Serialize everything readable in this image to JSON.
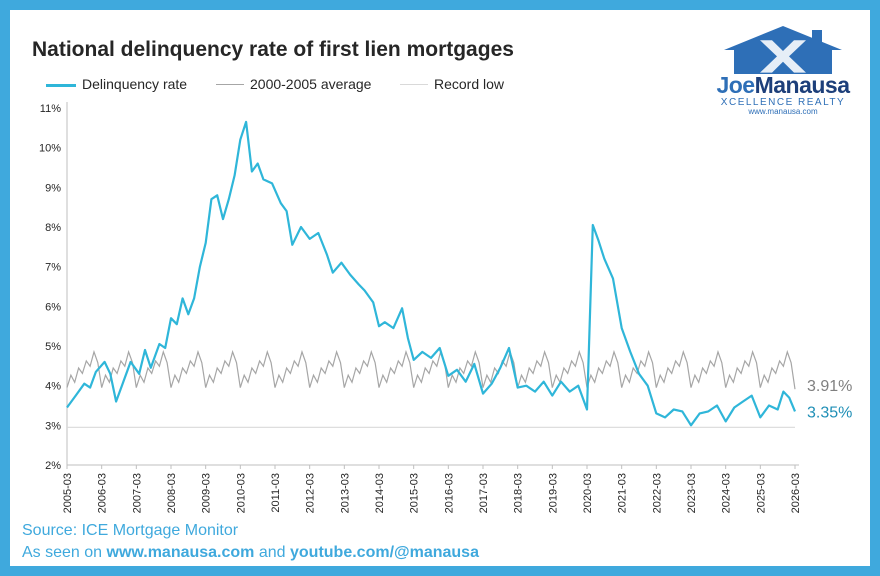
{
  "branding": {
    "name_part1": "Joe",
    "name_part2": "Manausa",
    "tagline": "XCELLENCE REALTY",
    "website": "www.manausa.com"
  },
  "source": {
    "line1": "Source: ICE Mortgage Monitor",
    "line2_prefix": "As seen on ",
    "line2_site": "www.manausa.com",
    "line2_mid": " and ",
    "line2_channel": "youtube.com/@manausa"
  },
  "chart_data": {
    "type": "line",
    "title": "National delinquency rate of first lien mortgages",
    "ylim": [
      2,
      11
    ],
    "y_ticks": [
      "2%",
      "3%",
      "4%",
      "5%",
      "6%",
      "7%",
      "8%",
      "9%",
      "10%",
      "11%"
    ],
    "x_ticks": [
      "2005-03",
      "2006-03",
      "2007-03",
      "2008-03",
      "2009-03",
      "2010-03",
      "2011-03",
      "2012-03",
      "2013-03",
      "2014-03",
      "2015-03",
      "2016-03",
      "2017-03",
      "2018-03",
      "2019-03",
      "2020-03",
      "2021-03",
      "2022-03",
      "2023-03",
      "2024-03",
      "2025-03",
      "2026-03"
    ],
    "x_range": [
      "2005-03",
      "2026-03"
    ],
    "legend_position": "top",
    "grid": false,
    "colors": {
      "delinquency": "#2fb6d9",
      "average": "#a6a6a6",
      "record_low": "#d9d9d9",
      "average_label": "#7f7f7f",
      "latest_label": "#1f8fb6"
    },
    "series": [
      {
        "name": "Delinquency rate",
        "points": [
          [
            "2005-03",
            3.45
          ],
          [
            "2005-06",
            3.75
          ],
          [
            "2005-09",
            4.05
          ],
          [
            "2005-11",
            3.95
          ],
          [
            "2006-01",
            4.35
          ],
          [
            "2006-04",
            4.6
          ],
          [
            "2006-06",
            4.3
          ],
          [
            "2006-08",
            3.6
          ],
          [
            "2006-10",
            4.0
          ],
          [
            "2007-01",
            4.6
          ],
          [
            "2007-04",
            4.3
          ],
          [
            "2007-06",
            4.9
          ],
          [
            "2007-08",
            4.45
          ],
          [
            "2007-11",
            5.05
          ],
          [
            "2008-01",
            4.95
          ],
          [
            "2008-03",
            5.7
          ],
          [
            "2008-05",
            5.55
          ],
          [
            "2008-07",
            6.2
          ],
          [
            "2008-09",
            5.8
          ],
          [
            "2008-11",
            6.2
          ],
          [
            "2009-01",
            7.0
          ],
          [
            "2009-03",
            7.6
          ],
          [
            "2009-05",
            8.7
          ],
          [
            "2009-07",
            8.8
          ],
          [
            "2009-09",
            8.2
          ],
          [
            "2009-11",
            8.7
          ],
          [
            "2010-01",
            9.3
          ],
          [
            "2010-03",
            10.2
          ],
          [
            "2010-05",
            10.65
          ],
          [
            "2010-07",
            9.4
          ],
          [
            "2010-09",
            9.6
          ],
          [
            "2010-11",
            9.2
          ],
          [
            "2011-02",
            9.1
          ],
          [
            "2011-05",
            8.6
          ],
          [
            "2011-07",
            8.4
          ],
          [
            "2011-09",
            7.55
          ],
          [
            "2011-12",
            8.0
          ],
          [
            "2012-03",
            7.7
          ],
          [
            "2012-06",
            7.85
          ],
          [
            "2012-09",
            7.3
          ],
          [
            "2012-11",
            6.85
          ],
          [
            "2013-02",
            7.1
          ],
          [
            "2013-05",
            6.8
          ],
          [
            "2013-08",
            6.55
          ],
          [
            "2013-10",
            6.4
          ],
          [
            "2014-01",
            6.1
          ],
          [
            "2014-03",
            5.5
          ],
          [
            "2014-05",
            5.6
          ],
          [
            "2014-08",
            5.45
          ],
          [
            "2014-11",
            5.95
          ],
          [
            "2015-01",
            5.2
          ],
          [
            "2015-03",
            4.65
          ],
          [
            "2015-06",
            4.85
          ],
          [
            "2015-09",
            4.7
          ],
          [
            "2015-12",
            4.95
          ],
          [
            "2016-03",
            4.25
          ],
          [
            "2016-06",
            4.4
          ],
          [
            "2016-09",
            4.1
          ],
          [
            "2016-12",
            4.55
          ],
          [
            "2017-03",
            3.8
          ],
          [
            "2017-06",
            4.05
          ],
          [
            "2017-09",
            4.45
          ],
          [
            "2017-12",
            4.95
          ],
          [
            "2018-03",
            3.95
          ],
          [
            "2018-06",
            4.0
          ],
          [
            "2018-09",
            3.85
          ],
          [
            "2018-12",
            4.1
          ],
          [
            "2019-03",
            3.75
          ],
          [
            "2019-06",
            4.1
          ],
          [
            "2019-09",
            3.85
          ],
          [
            "2019-12",
            4.0
          ],
          [
            "2020-03",
            3.4
          ],
          [
            "2020-05",
            8.05
          ],
          [
            "2020-07",
            7.65
          ],
          [
            "2020-09",
            7.2
          ],
          [
            "2020-12",
            6.7
          ],
          [
            "2021-03",
            5.45
          ],
          [
            "2021-06",
            4.85
          ],
          [
            "2021-09",
            4.3
          ],
          [
            "2021-12",
            4.0
          ],
          [
            "2022-03",
            3.3
          ],
          [
            "2022-06",
            3.2
          ],
          [
            "2022-09",
            3.4
          ],
          [
            "2022-12",
            3.35
          ],
          [
            "2023-03",
            3.0
          ],
          [
            "2023-06",
            3.3
          ],
          [
            "2023-09",
            3.35
          ],
          [
            "2023-12",
            3.5
          ],
          [
            "2024-03",
            3.1
          ],
          [
            "2024-06",
            3.45
          ],
          [
            "2024-09",
            3.6
          ],
          [
            "2024-12",
            3.75
          ],
          [
            "2025-03",
            3.2
          ],
          [
            "2025-06",
            3.5
          ],
          [
            "2025-09",
            3.4
          ],
          [
            "2025-11",
            3.85
          ],
          [
            "2026-01",
            3.7
          ],
          [
            "2026-03",
            3.35
          ]
        ]
      },
      {
        "name": "2000-2005 average",
        "pattern_low": 3.95,
        "pattern_high": 4.85,
        "last_value": 3.91
      },
      {
        "name": "Record low",
        "value": 2.95
      }
    ],
    "annotations": [
      {
        "text": "3.91%",
        "series": "2000-2005 average",
        "value": 3.91
      },
      {
        "text": "3.35%",
        "series": "Delinquency rate",
        "value": 3.35
      }
    ]
  }
}
